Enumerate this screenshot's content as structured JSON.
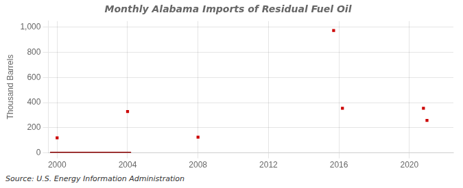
{
  "chart_data": {
    "type": "scatter",
    "title": "Monthly Alabama Imports of Residual Fuel Oil",
    "ylabel": "Thousand Barrels",
    "annotation": "Source: U.S. Energy Information Administration",
    "xlim": [
      1999.5,
      2022.5
    ],
    "xticks": [
      2000,
      2004,
      2008,
      2012,
      2016,
      2020
    ],
    "ylim": [
      0,
      1050
    ],
    "yticks": [
      0,
      200,
      400,
      600,
      800,
      {
        "value": 1000,
        "label": "1,000"
      }
    ],
    "grid": true,
    "series": [
      {
        "type": "line",
        "color": "#8B0000",
        "x": [
          1999.6,
          2004.2
        ],
        "values": [
          0,
          0
        ]
      },
      {
        "type": "scatter",
        "color": "#cc0000",
        "marker": "square",
        "x": [
          2000.0,
          2004.0,
          2008.0,
          2015.7,
          2016.2,
          2020.8,
          2021.0
        ],
        "values": [
          120,
          330,
          125,
          975,
          355,
          355,
          258
        ]
      }
    ]
  }
}
